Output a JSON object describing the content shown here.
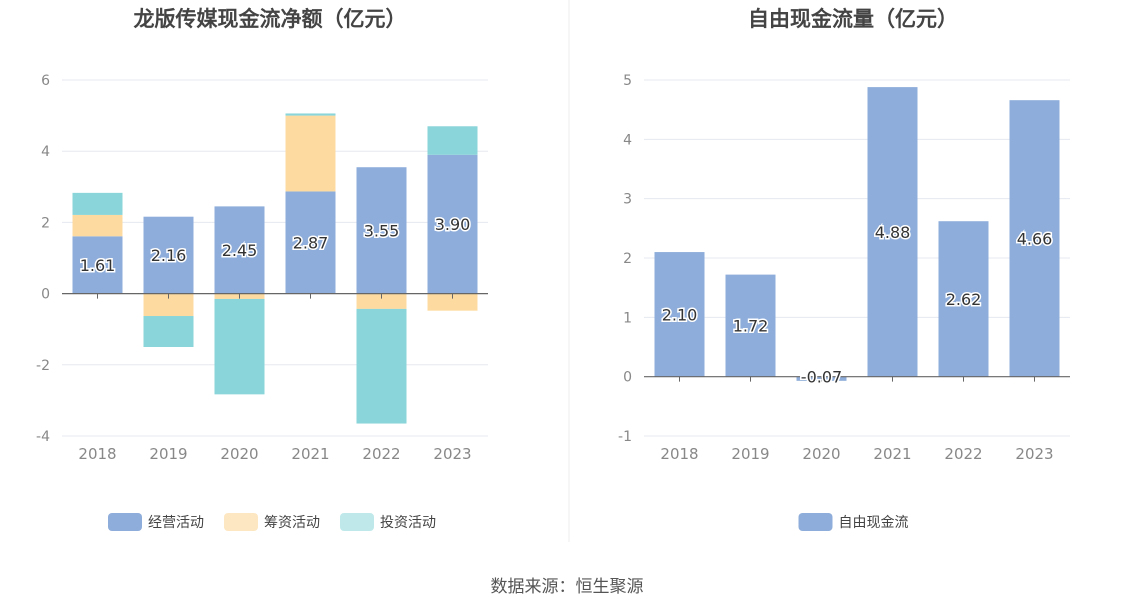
{
  "source_text": "数据来源：恒生聚源",
  "colors": {
    "operating": "#8eadda",
    "financing": "#fddba0",
    "investing": "#89d5d9",
    "freecash": "#8eadda",
    "axis": "#666666",
    "grid": "#e5e8ef",
    "tick_text": "#888888",
    "title_text": "#444444"
  },
  "chart_data": [
    {
      "type": "bar",
      "stacked": true,
      "title": "龙版传媒现金流净额（亿元）",
      "categories": [
        "2018",
        "2019",
        "2020",
        "2021",
        "2022",
        "2023"
      ],
      "ylim": [
        -4,
        6
      ],
      "yticks": [
        -4,
        -2,
        0,
        2,
        4,
        6
      ],
      "ytick_labels": [
        "-4",
        "-2",
        "0",
        "2",
        "4",
        "6"
      ],
      "grid": true,
      "legend_position": "bottom",
      "series": [
        {
          "name": "经营活动",
          "color_key": "operating",
          "values": [
            1.61,
            2.16,
            2.45,
            2.87,
            3.55,
            3.9
          ],
          "labels": [
            "1.61",
            "2.16",
            "2.45",
            "2.87",
            "3.55",
            "3.90"
          ]
        },
        {
          "name": "筹资活动",
          "color_key": "financing",
          "values": [
            0.6,
            -0.63,
            -0.15,
            2.13,
            -0.43,
            -0.48
          ]
        },
        {
          "name": "投资活动",
          "color_key": "investing",
          "values": [
            0.62,
            -0.87,
            -2.68,
            0.06,
            -3.22,
            0.8
          ]
        }
      ]
    },
    {
      "type": "bar",
      "title": "自由现金流量（亿元）",
      "categories": [
        "2018",
        "2019",
        "2020",
        "2021",
        "2022",
        "2023"
      ],
      "ylim": [
        -1,
        5
      ],
      "yticks": [
        -1,
        0,
        1,
        2,
        3,
        4,
        5
      ],
      "ytick_labels": [
        "-1",
        "0",
        "1",
        "2",
        "3",
        "4",
        "5"
      ],
      "grid": true,
      "legend_position": "bottom",
      "series": [
        {
          "name": "自由现金流",
          "color_key": "freecash",
          "values": [
            2.1,
            1.72,
            -0.07,
            4.88,
            2.62,
            4.66
          ],
          "labels": [
            "2.10",
            "1.72",
            "-0.07",
            "4.88",
            "2.62",
            "4.66"
          ]
        }
      ]
    }
  ]
}
